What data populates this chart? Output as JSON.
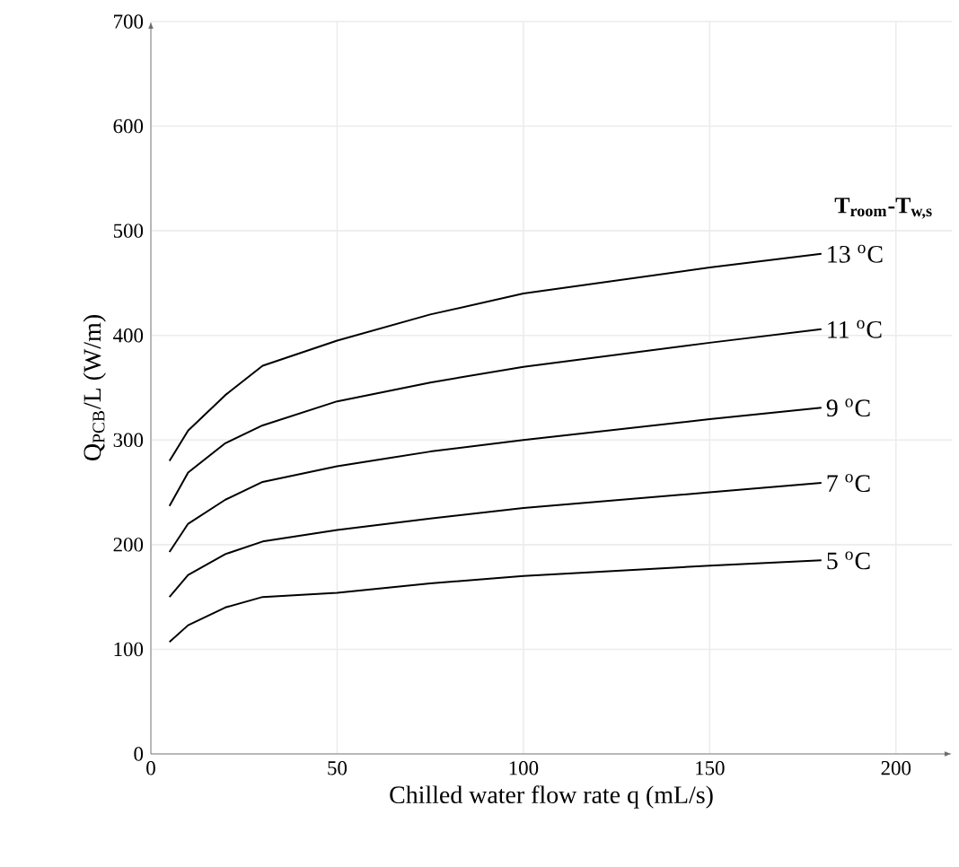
{
  "chart_data": {
    "type": "line",
    "xlabel": "Chilled water flow rate q (mL/s)",
    "ylabel": "Q$_{PCB}$/L (W/m)",
    "legend_title": "T$_{room}$-T$_{w,s}$",
    "xlim": [
      0,
      215
    ],
    "ylim": [
      0,
      700
    ],
    "xticks": [
      0,
      50,
      100,
      150,
      200
    ],
    "yticks": [
      0,
      100,
      200,
      300,
      400,
      500,
      600,
      700
    ],
    "grid": true,
    "line_style": "solid",
    "series": [
      {
        "name": "13 $^{o}$C",
        "color": "#000000",
        "x": [
          5,
          10,
          20,
          30,
          50,
          75,
          100,
          150,
          180
        ],
        "values": [
          280,
          309,
          343,
          371,
          395,
          420,
          440,
          465,
          478
        ]
      },
      {
        "name": "11 $^{o}$C",
        "color": "#000000",
        "x": [
          5,
          10,
          20,
          30,
          50,
          75,
          100,
          150,
          180
        ],
        "values": [
          237,
          269,
          297,
          314,
          337,
          355,
          370,
          393,
          406
        ]
      },
      {
        "name": "9 $^{o}$C",
        "color": "#000000",
        "x": [
          5,
          10,
          20,
          30,
          50,
          75,
          100,
          150,
          180
        ],
        "values": [
          193,
          220,
          243,
          260,
          275,
          289,
          300,
          320,
          331
        ]
      },
      {
        "name": "7 $^{o}$C",
        "color": "#000000",
        "x": [
          5,
          10,
          20,
          30,
          50,
          75,
          100,
          150,
          180
        ],
        "values": [
          150,
          171,
          191,
          203,
          214,
          225,
          235,
          250,
          259
        ]
      },
      {
        "name": "5 $^{o}$C",
        "color": "#000000",
        "x": [
          5,
          10,
          20,
          30,
          50,
          75,
          100,
          150,
          180
        ],
        "values": [
          107,
          123,
          140,
          150,
          154,
          163,
          170,
          180,
          185
        ]
      }
    ]
  }
}
